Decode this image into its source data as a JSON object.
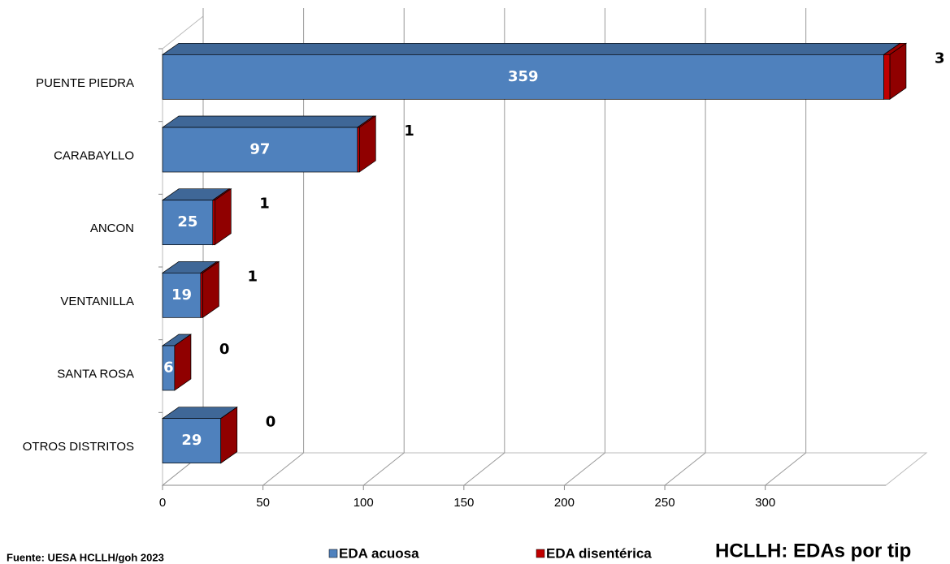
{
  "chart_data": {
    "type": "bar",
    "orientation": "horizontal",
    "stacked": true,
    "title": "HCLLH: EDAs por tip",
    "source": "Fuente: UESA HCLLH/goh 2023",
    "categories": [
      "PUENTE PIEDRA",
      "CARABAYLLO",
      "ANCON",
      "VENTANILLA",
      "SANTA ROSA",
      "OTROS DISTRITOS"
    ],
    "series": [
      {
        "name": "EDA acuosa",
        "color": "#4f81bd",
        "values": [
          359,
          97,
          25,
          19,
          6,
          29
        ]
      },
      {
        "name": "EDA disentérica",
        "color": "#c00000",
        "values": [
          3,
          1,
          1,
          1,
          0,
          0
        ]
      }
    ],
    "xlim": [
      0,
      360
    ],
    "xticks": [
      0,
      50,
      100,
      150,
      200,
      250,
      300
    ],
    "grid": true
  }
}
